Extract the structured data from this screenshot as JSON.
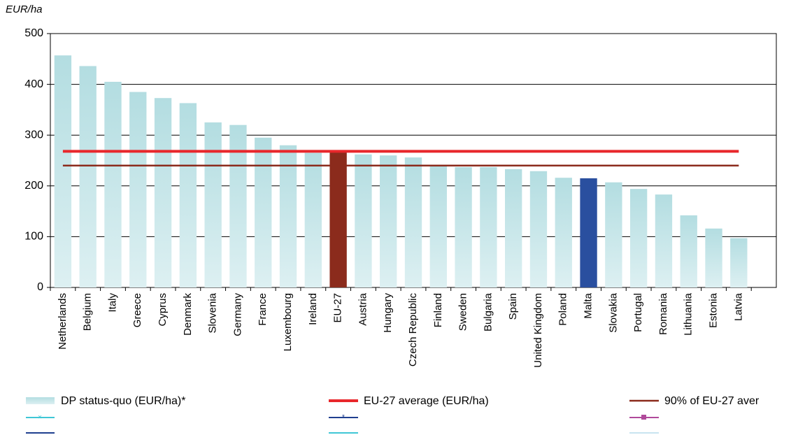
{
  "chart_data": {
    "type": "bar",
    "y_label": "EUR/ha",
    "categories": [
      "Netherlands",
      "Belgium",
      "Italy",
      "Greece",
      "Cyprus",
      "Denmark",
      "Slovenia",
      "Germany",
      "France",
      "Luxembourg",
      "Ireland",
      "EU-27",
      "Austria",
      "Hungary",
      "Czech Republic",
      "Finland",
      "Sweden",
      "Bulgaria",
      "Spain",
      "United Kingdom",
      "Poland",
      "Malta",
      "Slovakia",
      "Portugal",
      "Romania",
      "Lithuania",
      "Estonia",
      "Latvia",
      null
    ],
    "series": [
      {
        "name": "DP status-quo (EUR/ha)*",
        "color": "#bfe4e7",
        "values": [
          457,
          436,
          405,
          385,
          373,
          363,
          325,
          320,
          295,
          280,
          265,
          268,
          262,
          260,
          256,
          240,
          237,
          237,
          233,
          229,
          216,
          215,
          207,
          194,
          183,
          142,
          116,
          97,
          null
        ],
        "highlights": [
          {
            "index": 11,
            "color": "#8b2b1c"
          },
          {
            "index": 21,
            "color": "#2a4f9f"
          }
        ]
      },
      {
        "name": "EU-27 average (EUR/ha)",
        "type": "hline",
        "color": "#e8272b",
        "value": 268
      },
      {
        "name": "90% of EU-27 aver",
        "type": "hline",
        "color": "#8b2b1c",
        "value": 240
      }
    ],
    "ylim": [
      0,
      500
    ],
    "yticks": [
      0,
      100,
      200,
      300,
      400,
      500
    ],
    "grid": true
  }
}
